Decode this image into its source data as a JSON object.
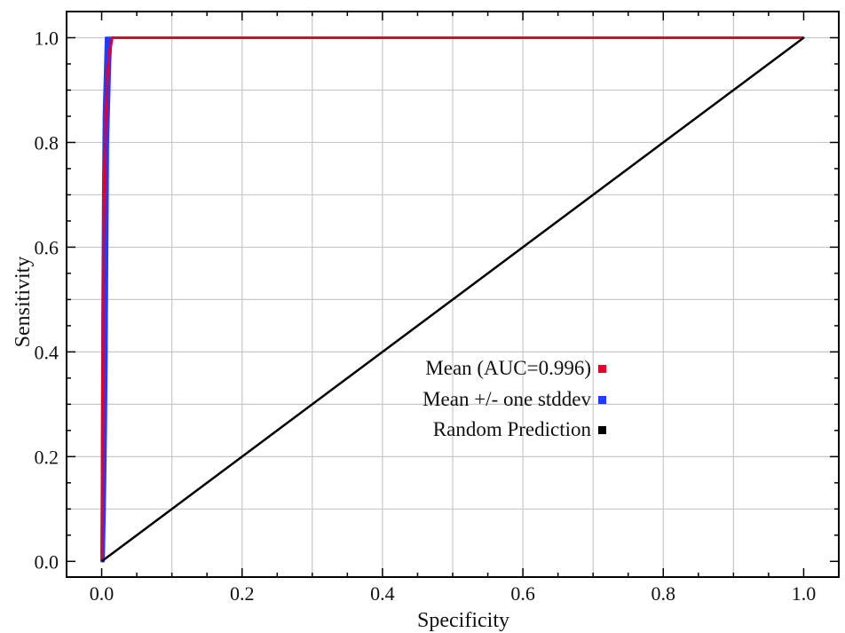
{
  "chart_data": {
    "type": "line",
    "xlabel": "Specificity",
    "ylabel": "Sensitivity",
    "xlim": [
      -0.05,
      1.05
    ],
    "ylim": [
      -0.03,
      1.05
    ],
    "x_ticks": [
      0.0,
      0.2,
      0.4,
      0.6,
      0.8,
      1.0
    ],
    "y_ticks": [
      0.0,
      0.2,
      0.4,
      0.6,
      0.8,
      1.0
    ],
    "x_tick_labels": [
      "0.0",
      "0.2",
      "0.4",
      "0.6",
      "0.8",
      "1.0"
    ],
    "y_tick_labels": [
      "0.0",
      "0.2",
      "0.4",
      "0.6",
      "0.8",
      "1.0"
    ],
    "grid": true,
    "grid_x": [
      0.1,
      0.2,
      0.3,
      0.4,
      0.5,
      0.6,
      0.7,
      0.8,
      0.9
    ],
    "grid_y": [
      0.1,
      0.2,
      0.3,
      0.4,
      0.5,
      0.6,
      0.7,
      0.8,
      0.9,
      1.0
    ],
    "legend_position": "center-right",
    "series": [
      {
        "name": "Mean +/- one stddev",
        "color": "#1f3cff",
        "style": "band",
        "upper_x": [
          0.0,
          0.001,
          0.002,
          0.003,
          0.005,
          0.006,
          0.007,
          0.008,
          0.01,
          0.012,
          0.015,
          1.0
        ],
        "upper_y": [
          0.0,
          0.45,
          0.7,
          0.85,
          0.95,
          1.0,
          1.0,
          1.0,
          1.0,
          1.0,
          1.0,
          1.0
        ],
        "lower_x": [
          0.0,
          0.003,
          0.005,
          0.006,
          0.007,
          0.008,
          0.009,
          0.01,
          0.011,
          0.012,
          0.013,
          0.015,
          1.0
        ],
        "lower_y": [
          0.0,
          0.0,
          0.15,
          0.25,
          0.4,
          0.6,
          0.8,
          0.85,
          0.9,
          0.95,
          0.98,
          1.0,
          1.0
        ]
      },
      {
        "name": "Mean (AUC=0.996)",
        "color": "#e8002b",
        "style": "line",
        "x": [
          0.0,
          0.002,
          0.004,
          0.006,
          0.008,
          0.01,
          0.012,
          0.015,
          1.0
        ],
        "y": [
          0.0,
          0.55,
          0.75,
          0.85,
          0.92,
          0.96,
          0.98,
          1.0,
          1.0
        ]
      },
      {
        "name": "Random Prediction",
        "color": "#000000",
        "style": "line",
        "x": [
          0.0,
          1.0
        ],
        "y": [
          0.0,
          1.0
        ]
      }
    ]
  }
}
